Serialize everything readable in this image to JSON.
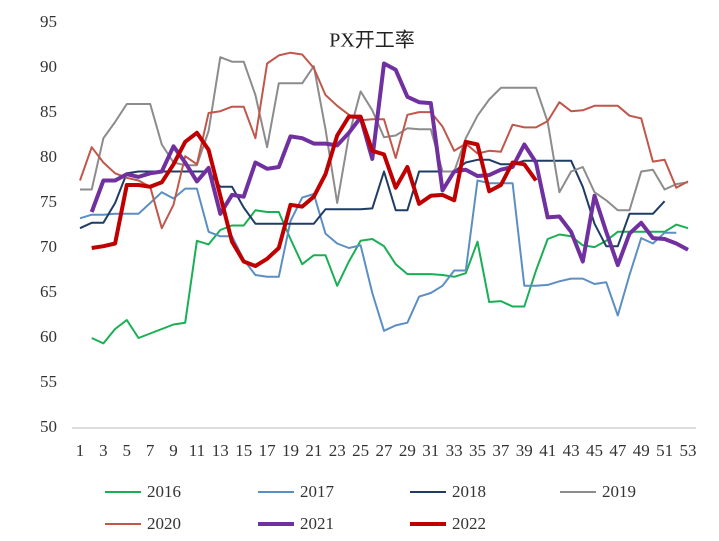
{
  "chart_data": {
    "type": "line",
    "title": "PX开工率",
    "x": [
      1,
      2,
      3,
      4,
      5,
      6,
      7,
      8,
      9,
      10,
      11,
      12,
      13,
      14,
      15,
      16,
      17,
      18,
      19,
      20,
      21,
      22,
      23,
      24,
      25,
      26,
      27,
      28,
      29,
      30,
      31,
      32,
      33,
      34,
      35,
      36,
      37,
      38,
      39,
      40,
      41,
      42,
      43,
      44,
      45,
      46,
      47,
      48,
      49,
      50,
      51,
      52,
      53
    ],
    "xlim": [
      1,
      53
    ],
    "xticks": [
      1,
      3,
      5,
      7,
      9,
      11,
      13,
      15,
      17,
      19,
      21,
      23,
      25,
      27,
      29,
      31,
      33,
      35,
      37,
      39,
      41,
      43,
      45,
      47,
      49,
      51,
      53
    ],
    "ylim": [
      50,
      95
    ],
    "yticks": [
      50,
      55,
      60,
      65,
      70,
      75,
      80,
      85,
      90,
      95
    ],
    "grid": false,
    "legend": "bottom",
    "series": [
      {
        "name": "2016",
        "color": "#1aaf54",
        "width": 2,
        "values": [
          null,
          60,
          59.4,
          61,
          62,
          60,
          60.5,
          61,
          61.5,
          61.7,
          70.8,
          70.4,
          72,
          72.5,
          72.5,
          74.2,
          74,
          74,
          71,
          68.2,
          69.2,
          69.2,
          65.8,
          68.5,
          70.8,
          71,
          70.2,
          68.2,
          67.1,
          67.1,
          67.1,
          67,
          66.8,
          67.2,
          70.7,
          64,
          64.1,
          63.5,
          63.5,
          67.5,
          71,
          71.5,
          71.3,
          70.3,
          70.1,
          70.8,
          71.8,
          71.8,
          71.8,
          71.8,
          71.8,
          72.6,
          72.2
        ]
      },
      {
        "name": "2017",
        "color": "#5b8fc4",
        "width": 2,
        "values": [
          73.3,
          73.7,
          73.7,
          73.8,
          73.8,
          73.8,
          75,
          76.2,
          75.5,
          76.6,
          76.6,
          71.8,
          71.3,
          71.3,
          68.7,
          67,
          66.8,
          66.8,
          73,
          75.6,
          76,
          71.6,
          70.5,
          70,
          70.3,
          65,
          60.8,
          61.4,
          61.7,
          64.6,
          65,
          65.8,
          67.5,
          67.5,
          77.5,
          77.2,
          77.2,
          77.2,
          65.8,
          65.8,
          65.9,
          66.3,
          66.6,
          66.6,
          66,
          66.2,
          62.5,
          67,
          71.1,
          70.5,
          71.7,
          71.7,
          null
        ]
      },
      {
        "name": "2018",
        "color": "#1f3d64",
        "width": 2,
        "values": [
          72.2,
          72.8,
          72.8,
          75,
          78.3,
          78.5,
          78.5,
          78.5,
          78.5,
          78.5,
          78.5,
          78.5,
          76.8,
          76.8,
          74.5,
          72.7,
          72.7,
          72.7,
          72.7,
          72.7,
          72.7,
          74.3,
          74.3,
          74.3,
          74.3,
          74.4,
          78.5,
          74.2,
          74.2,
          78.5,
          78.5,
          78.5,
          78.5,
          79.5,
          79.8,
          79.8,
          79.3,
          79.3,
          79.7,
          79.7,
          79.7,
          79.7,
          79.7,
          76.8,
          72.7,
          70.2,
          70.2,
          73.8,
          73.8,
          73.8,
          75.2,
          null,
          null
        ]
      },
      {
        "name": "2019",
        "color": "#8c8c8c",
        "width": 2,
        "values": [
          76.5,
          76.5,
          82.2,
          84,
          86,
          86,
          86,
          81.5,
          79.5,
          79.2,
          79.2,
          83,
          91.2,
          90.7,
          90.7,
          87,
          81.2,
          88.3,
          88.3,
          88.3,
          90.2,
          83.2,
          75,
          82.5,
          87.4,
          85.3,
          82.3,
          82.5,
          83.3,
          83.2,
          83.2,
          78.5,
          78.5,
          82.2,
          84.7,
          86.5,
          87.8,
          87.8,
          87.8,
          87.8,
          84,
          76.2,
          78.5,
          79,
          76.2,
          75.3,
          74.2,
          74.2,
          78.5,
          78.7,
          76.5,
          77.1,
          77.3
        ]
      },
      {
        "name": "2020",
        "color": "#c0574a",
        "width": 2,
        "values": [
          77.5,
          81.2,
          79.5,
          78.3,
          77.8,
          77.5,
          76.8,
          72.2,
          74.8,
          80.2,
          79.3,
          85,
          85.2,
          85.7,
          85.7,
          82.2,
          90.5,
          91.4,
          91.7,
          91.5,
          90,
          87,
          85.8,
          84.8,
          84.2,
          84.3,
          84.3,
          80,
          84.8,
          85.1,
          85.1,
          83.5,
          80.8,
          81.6,
          80.5,
          80.8,
          80.7,
          83.7,
          83.4,
          83.4,
          84.1,
          86.2,
          85.2,
          85.3,
          85.8,
          85.8,
          85.8,
          84.7,
          84.4,
          79.6,
          79.8,
          76.7,
          77.4
        ]
      },
      {
        "name": "2021",
        "color": "#7030a0",
        "width": 4,
        "values": [
          null,
          74,
          77.5,
          77.5,
          78.2,
          77.9,
          78.3,
          78.5,
          81.3,
          79.5,
          77.4,
          78.9,
          73.8,
          75.9,
          75.7,
          79.5,
          78.8,
          79,
          82.4,
          82.2,
          81.6,
          81.6,
          81.4,
          82.8,
          84.5,
          79.9,
          90.5,
          89.8,
          86.8,
          86.2,
          86.1,
          76.4,
          78.5,
          78.7,
          78,
          78.1,
          78.7,
          79,
          81.5,
          79.5,
          73.4,
          73.5,
          71.8,
          68.5,
          75.8,
          71.8,
          68.1,
          71.6,
          72.8,
          71.1,
          71,
          70.5,
          69.8
        ]
      },
      {
        "name": "2022",
        "color": "#c00000",
        "width": 4,
        "values": [
          null,
          70,
          70.2,
          70.5,
          77,
          77,
          76.8,
          77.3,
          79.3,
          81.8,
          82.8,
          80.9,
          75.8,
          70.7,
          68.5,
          68,
          68.8,
          70,
          74.8,
          74.6,
          75.7,
          78.2,
          82.5,
          84.6,
          84.6,
          80.8,
          80.4,
          76.7,
          79,
          74.9,
          75.8,
          75.9,
          75.3,
          81.8,
          81.5,
          76.3,
          77,
          79.5,
          79.3,
          77.5,
          null,
          null,
          null,
          null,
          null,
          null,
          null,
          null,
          null,
          null,
          null,
          null,
          null
        ]
      }
    ]
  }
}
